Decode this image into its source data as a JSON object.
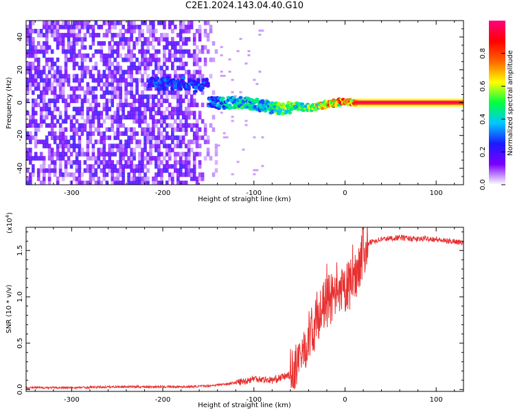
{
  "title": "C2E1.2024.143.04.40.G10",
  "chart_data": [
    {
      "type": "heatmap",
      "xlabel": "Height of straight line (km)",
      "ylabel": "Frequency (Hz)",
      "xlim": [
        -350,
        130
      ],
      "ylim": [
        -50,
        50
      ],
      "xticks": [
        -300,
        -200,
        -100,
        0,
        100
      ],
      "yticks": [
        -40,
        -20,
        0,
        20,
        40
      ],
      "colorbar": {
        "label": "Normalized spectral amplitude",
        "range": [
          0.0,
          1.0
        ],
        "ticks": [
          "0.0",
          "0.2",
          "0.4",
          "0.6",
          "0.8"
        ],
        "colormap": [
          "#ffffff",
          "#7a00ff",
          "#1a1aff",
          "#00c8ff",
          "#00ff40",
          "#ffff00",
          "#ff6600",
          "#ff0000",
          "#ff0080"
        ]
      },
      "ridge": {
        "x": [
          -150,
          -130,
          -110,
          -90,
          -70,
          -55,
          -45,
          -35,
          -20,
          -10,
          0,
          10,
          130
        ],
        "y": [
          0,
          0,
          0,
          -2,
          -4,
          -2,
          -3,
          -3,
          -1,
          0,
          1,
          0,
          0
        ],
        "amplitude": [
          0.35,
          0.45,
          0.5,
          0.45,
          0.55,
          0.6,
          0.6,
          0.65,
          0.75,
          0.85,
          0.85,
          0.9,
          0.9
        ]
      }
    },
    {
      "type": "line",
      "xlabel": "Height of straight line (km)",
      "ylabel": "SNR (10 * v/v)",
      "yscale_label": "(x10",
      "yscale_exp": "4",
      "xlim": [
        -350,
        130
      ],
      "ylim": [
        -0.02,
        1.75
      ],
      "xticks": [
        -300,
        -200,
        -100,
        0,
        100
      ],
      "yticks": [
        "0.0",
        "0.5",
        "1.0",
        "1.5"
      ],
      "color": "#e83030",
      "series": [
        {
          "x": [
            -350,
            -300,
            -250,
            -200,
            -170,
            -150,
            -130,
            -110,
            -100,
            -90,
            -80,
            -70,
            -60,
            -50,
            -45,
            -40,
            -35,
            -30,
            -25,
            -20,
            -15,
            -10,
            -5,
            0,
            5,
            10,
            15,
            20,
            25,
            30,
            40,
            50,
            60,
            70,
            80,
            90,
            100,
            110,
            120,
            130
          ],
          "values": [
            0.02,
            0.02,
            0.03,
            0.03,
            0.03,
            0.04,
            0.06,
            0.09,
            0.12,
            0.11,
            0.1,
            0.13,
            0.16,
            0.25,
            0.45,
            0.58,
            0.62,
            0.82,
            0.85,
            0.95,
            0.98,
            0.95,
            1.0,
            1.08,
            1.12,
            1.18,
            1.35,
            1.5,
            1.56,
            1.6,
            1.62,
            1.63,
            1.64,
            1.63,
            1.62,
            1.63,
            1.62,
            1.6,
            1.6,
            1.58
          ]
        }
      ]
    }
  ]
}
